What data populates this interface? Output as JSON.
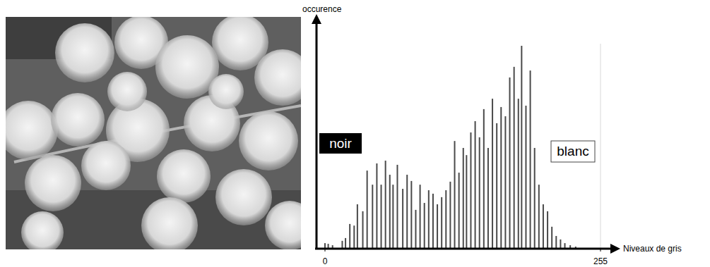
{
  "chart_data": {
    "type": "bar",
    "x_label": "Niveaux de gris",
    "y_label": "occurence",
    "annotations": [
      "noir",
      "blanc"
    ],
    "x": [
      0,
      3,
      7,
      16,
      19,
      23,
      27,
      30,
      35,
      39,
      44,
      48,
      52,
      56,
      60,
      63,
      67,
      72,
      76,
      80,
      84,
      88,
      92,
      96,
      100,
      104,
      108,
      112,
      116,
      120,
      124,
      128,
      131,
      135,
      139,
      143,
      147,
      151,
      155,
      159,
      163,
      167,
      171,
      175,
      179,
      182,
      186,
      190,
      194,
      198,
      202,
      206,
      210,
      214,
      218,
      222,
      227,
      232
    ],
    "values": [
      2.4,
      2.1,
      1.5,
      3.4,
      4.6,
      10.7,
      10.0,
      19.2,
      16.2,
      33.8,
      27.7,
      36.9,
      27.7,
      38.1,
      32.0,
      27.7,
      36.3,
      25.9,
      32.0,
      29.3,
      16.8,
      27.7,
      19.8,
      25.3,
      23.8,
      19.2,
      22.3,
      25.3,
      29.0,
      46.6,
      32.9,
      43.6,
      40.5,
      50.3,
      55.2,
      48.2,
      60.4,
      43.6,
      64.9,
      54.3,
      61.3,
      57.3,
      74.1,
      78.7,
      64.9,
      87.8,
      61.9,
      77.1,
      43.6,
      27.7,
      19.2,
      16.2,
      9.5,
      5.5,
      4.0,
      2.4,
      1.5,
      0.9
    ],
    "color": "#4a4a4a",
    "xlim": [
      0,
      255
    ],
    "xticks": [
      0,
      255
    ],
    "ylim": [
      0,
      100
    ],
    "yticks": [],
    "grid": false,
    "tick_labels": "x"
  }
}
